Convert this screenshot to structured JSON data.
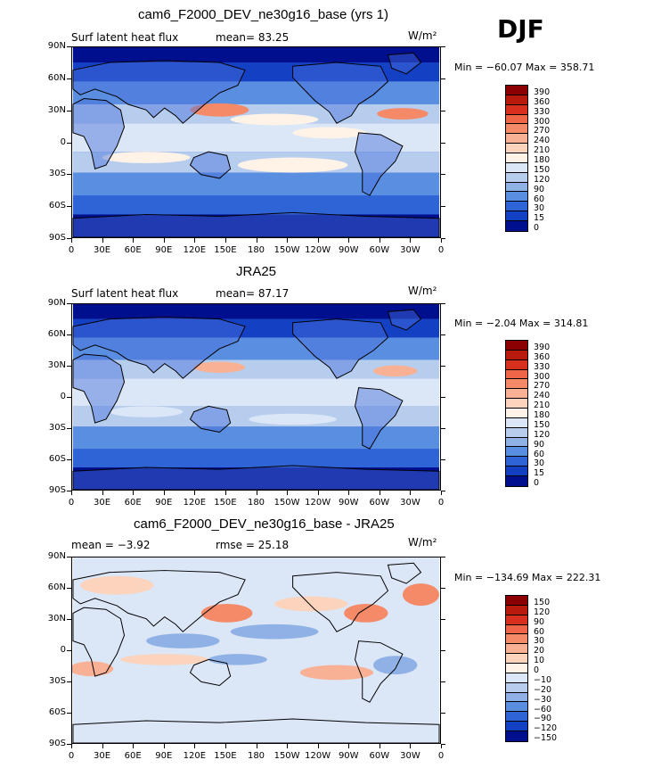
{
  "season": "DJF",
  "panels": [
    {
      "title": "cam6_F2000_DEV_ne30g16_base (yrs 1)",
      "left_label": "Surf latent heat flux",
      "mid_label": "mean=  83.25",
      "units_label": "W/m²",
      "minmax": "Min = −60.07 Max = 358.71",
      "colorbar_levels": [
        "390",
        "360",
        "330",
        "300",
        "270",
        "240",
        "210",
        "180",
        "150",
        "120",
        "90",
        "60",
        "30",
        "15",
        "0"
      ],
      "colors": [
        "#8b0000",
        "#b81a0d",
        "#d7301f",
        "#ef6548",
        "#f58a68",
        "#f8b195",
        "#fcd3bd",
        "#fff2e6",
        "#dbe6f6",
        "#b7cdee",
        "#8fb1e6",
        "#5a8ee0",
        "#2f64d6",
        "#1440c4",
        "#000f8e"
      ]
    },
    {
      "title": "JRA25",
      "left_label": "Surf latent heat flux",
      "mid_label": "mean=  87.17",
      "units_label": "W/m²",
      "minmax": "Min =  −2.04 Max = 314.81",
      "colorbar_levels": [
        "390",
        "360",
        "330",
        "300",
        "270",
        "240",
        "210",
        "180",
        "150",
        "120",
        "90",
        "60",
        "30",
        "15",
        "0"
      ],
      "colors": [
        "#8b0000",
        "#b81a0d",
        "#d7301f",
        "#ef6548",
        "#f58a68",
        "#f8b195",
        "#fcd3bd",
        "#fff2e6",
        "#dbe6f6",
        "#b7cdee",
        "#8fb1e6",
        "#5a8ee0",
        "#2f64d6",
        "#1440c4",
        "#000f8e"
      ]
    },
    {
      "title": "cam6_F2000_DEV_ne30g16_base - JRA25",
      "left_label": "mean =  −3.92",
      "mid_label": "rmse =  25.18",
      "units_label": "W/m²",
      "minmax": "Min = −134.69 Max = 222.31",
      "colorbar_levels": [
        "150",
        "120",
        "90",
        "60",
        "30",
        "20",
        "10",
        "0",
        "−10",
        "−20",
        "−30",
        "−60",
        "−90",
        "−120",
        "−150"
      ],
      "colors": [
        "#8b0000",
        "#b81a0d",
        "#d7301f",
        "#ef6548",
        "#f58a68",
        "#f8b195",
        "#fcd3bd",
        "#fff2e6",
        "#dbe6f6",
        "#b7cdee",
        "#8fb1e6",
        "#5a8ee0",
        "#2f64d6",
        "#1440c4",
        "#000f8e"
      ]
    }
  ],
  "lat_ticks": [
    "90N",
    "60N",
    "30N",
    "0",
    "30S",
    "60S",
    "90S"
  ],
  "lon_ticks": [
    "0",
    "30E",
    "60E",
    "90E",
    "120E",
    "150E",
    "180",
    "150W",
    "120W",
    "90W",
    "60W",
    "30W",
    "0"
  ]
}
